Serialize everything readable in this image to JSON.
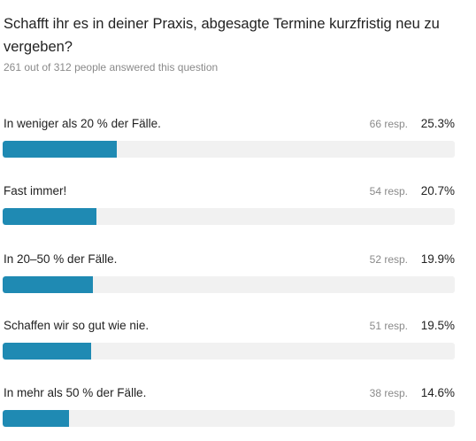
{
  "question": "Schafft ihr es in deiner Praxis, abgesagte Termine kurzfristig neu zu vergeben?",
  "answered_summary": "261 out of 312 people answered this question",
  "colors": {
    "bar_fill": "#1f8ab3",
    "bar_track": "#f1f1f1"
  },
  "chart_data": {
    "type": "bar",
    "orientation": "horizontal",
    "title": "Schafft ihr es in deiner Praxis, abgesagte Termine kurzfristig neu zu vergeben?",
    "ylim": [
      0,
      100
    ],
    "categories": [
      "In weniger als 20 % der Fälle.",
      "Fast immer!",
      "In 20–50 % der Fälle.",
      "Schaffen wir so gut wie nie.",
      "In mehr als 50 % der Fälle."
    ],
    "responses": [
      "66 resp.",
      "54 resp.",
      "52 resp.",
      "51 resp.",
      "38 resp."
    ],
    "percent_labels": [
      "25.3%",
      "20.7%",
      "19.9%",
      "19.5%",
      "14.6%"
    ],
    "values": [
      25.3,
      20.7,
      19.9,
      19.5,
      14.6
    ],
    "response_counts": [
      66,
      54,
      52,
      51,
      38
    ]
  }
}
